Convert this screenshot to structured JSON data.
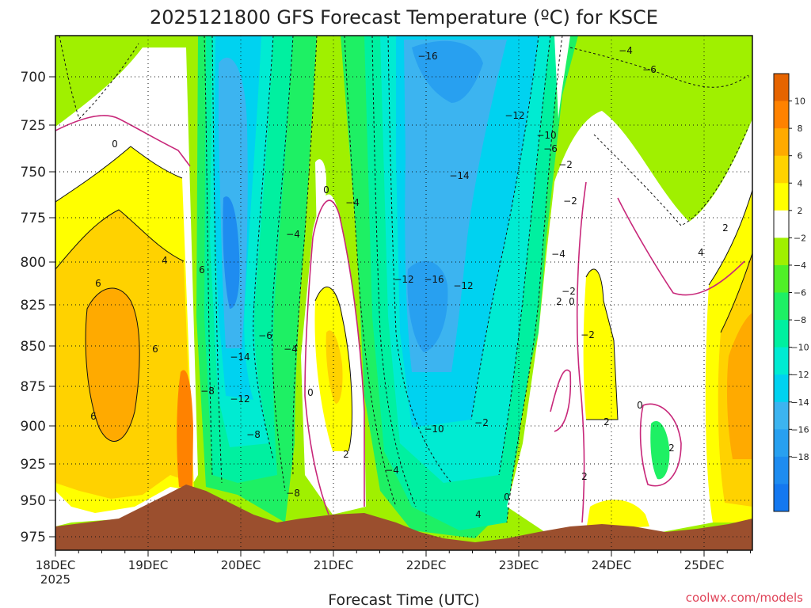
{
  "chart_data": {
    "type": "heatmap",
    "title": "2025121800 GFS Forecast Temperature (ºC) for KSCE",
    "xlabel": "Forecast Time (UTC)",
    "ylabel": "",
    "credit": "coolwx.com/models",
    "x_tick_labels": [
      "18DEC",
      "19DEC",
      "20DEC",
      "21DEC",
      "22DEC",
      "23DEC",
      "24DEC",
      "25DEC"
    ],
    "x_year_label": "2025",
    "y_tick_labels": [
      "700",
      "725",
      "750",
      "775",
      "800",
      "825",
      "850",
      "875",
      "900",
      "925",
      "950",
      "975"
    ],
    "y_range_hpa": [
      678,
      985
    ],
    "x_range_days": [
      0,
      7.5
    ],
    "colorbar": {
      "levels": [
        -20,
        -18,
        -16,
        -14,
        -12,
        -10,
        -8,
        -6,
        -4,
        -2,
        2,
        4,
        6,
        8,
        10,
        12
      ],
      "tick_labels": [
        "10",
        "8",
        "6",
        "4",
        "2",
        "−2",
        "−4",
        "−6",
        "−8",
        "−10",
        "−12",
        "−14",
        "−16",
        "−18"
      ],
      "colors": [
        "#1478f0",
        "#1e8cf0",
        "#28a0f0",
        "#3cb4f0",
        "#00d2f0",
        "#00ebd2",
        "#00f0a0",
        "#1ef064",
        "#50f028",
        "#a0f000",
        "#ffffff",
        "#ffff00",
        "#ffd200",
        "#ffaa00",
        "#ff8200",
        "#e66400"
      ]
    },
    "contour_labels": [
      "0",
      "−16",
      "−4",
      "−6",
      "−12",
      "−10",
      "−6",
      "−2",
      "−14",
      "−2",
      "0",
      "−4",
      "−4",
      "6",
      "−8",
      "4",
      "−4",
      "6",
      "−12",
      "−16",
      "−12",
      "−2",
      "2",
      "0",
      "6",
      "−6",
      "−4",
      "−14",
      "6",
      "−2",
      "0",
      "−12",
      "−10",
      "−2",
      "−8",
      "−4",
      "−8",
      "0",
      "4",
      "2",
      "2",
      "2",
      "0",
      "2",
      "4",
      "2"
    ],
    "surface_note": "terrain (brown) below ~955-975 hPa"
  }
}
